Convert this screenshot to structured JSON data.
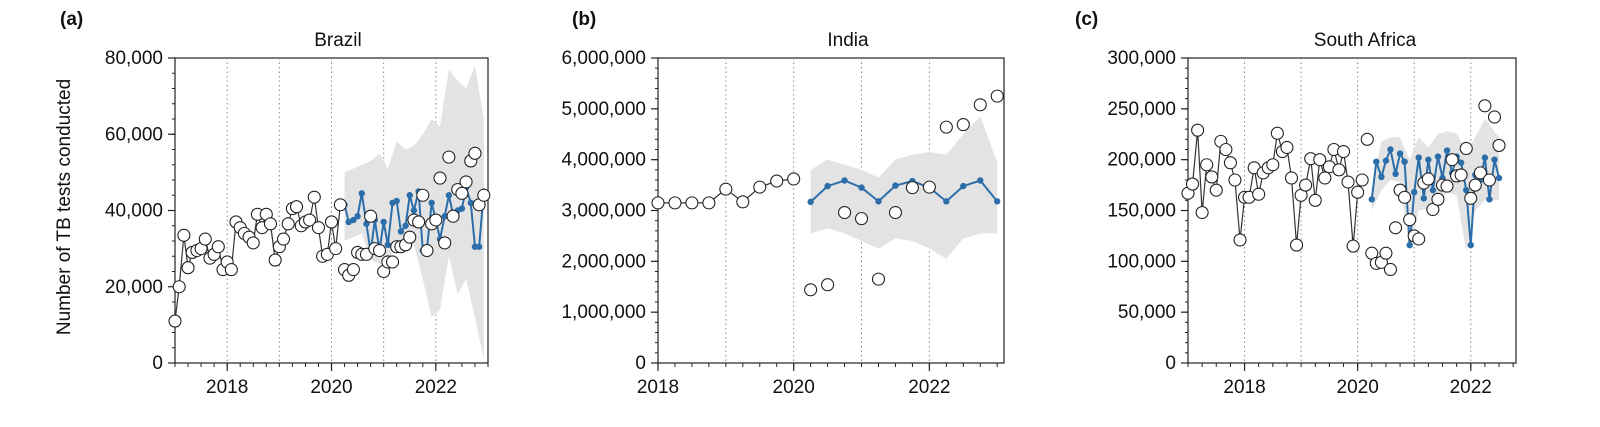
{
  "figure": {
    "ylabel": "Number of TB tests conducted"
  },
  "chart_data": [
    {
      "type": "line",
      "letter": "(a)",
      "title": "Brazil",
      "ylim": [
        0,
        80000
      ],
      "xlim": [
        2017.0,
        2023.0
      ],
      "y_ticks": [
        0,
        20000,
        40000,
        60000,
        80000
      ],
      "y_tick_labels": [
        "0",
        "20,000",
        "40,000",
        "60,000",
        "80,000"
      ],
      "x_ticks": [
        2018,
        2020,
        2022
      ],
      "x_tick_labels": [
        "2018",
        "2020",
        "2022"
      ],
      "year_gridlines": [
        2018,
        2019,
        2020,
        2021,
        2022
      ],
      "series": [
        {
          "role": "observed",
          "x": [
            2017.0,
            2017.08,
            2017.17,
            2017.25,
            2017.33,
            2017.42,
            2017.5,
            2017.58,
            2017.67,
            2017.75,
            2017.83,
            2017.92,
            2018.0,
            2018.08,
            2018.17,
            2018.25,
            2018.33,
            2018.42,
            2018.5,
            2018.58,
            2018.67,
            2018.75,
            2018.83,
            2018.92,
            2019.0,
            2019.08,
            2019.17,
            2019.25,
            2019.33,
            2019.42,
            2019.5,
            2019.58,
            2019.67,
            2019.75,
            2019.83,
            2019.92,
            2020.0,
            2020.08,
            2020.17,
            2020.25,
            2020.33,
            2020.42,
            2020.5,
            2020.58,
            2020.67,
            2020.75,
            2020.83,
            2020.92,
            2021.0,
            2021.08,
            2021.17,
            2021.25,
            2021.33,
            2021.42,
            2021.5,
            2021.58,
            2021.67,
            2021.75,
            2021.83,
            2021.92,
            2022.0,
            2022.08,
            2022.17,
            2022.25,
            2022.33,
            2022.42,
            2022.5,
            2022.58,
            2022.67,
            2022.75,
            2022.83,
            2022.92
          ],
          "y": [
            11000,
            20000,
            33500,
            25000,
            29000,
            29500,
            30000,
            32500,
            27500,
            28500,
            30500,
            24500,
            26500,
            24500,
            37000,
            35500,
            34000,
            33000,
            31500,
            39000,
            35500,
            39000,
            36500,
            27000,
            30500,
            32500,
            36500,
            40500,
            41000,
            36000,
            37000,
            37500,
            43500,
            35500,
            28000,
            28500,
            37000,
            30000,
            41500,
            24500,
            23000,
            24500,
            29000,
            28500,
            28500,
            38500,
            30000,
            29500,
            24000,
            26500,
            26500,
            30500,
            30500,
            31000,
            33000,
            37500,
            37000,
            44000,
            29500,
            36500,
            37500,
            48500,
            31500,
            54000,
            38500,
            45500,
            44500,
            47500,
            53000,
            55000,
            41500,
            44000
          ],
          "line_order": [
            0,
            1,
            2,
            3,
            4,
            5,
            6,
            7,
            8,
            9,
            10,
            11,
            12,
            13,
            14,
            15,
            16,
            17,
            18,
            19,
            20,
            21,
            22,
            23,
            24,
            25,
            26,
            27,
            28,
            29,
            30,
            31,
            32,
            33,
            34,
            35,
            36,
            37,
            38
          ],
          "marker": "open-circle"
        },
        {
          "role": "predicted",
          "x": [
            2020.25,
            2020.33,
            2020.42,
            2020.5,
            2020.58,
            2020.67,
            2020.75,
            2020.83,
            2020.92,
            2021.0,
            2021.08,
            2021.17,
            2021.25,
            2021.33,
            2021.42,
            2021.5,
            2021.58,
            2021.67,
            2021.75,
            2021.83,
            2021.92,
            2022.0,
            2022.08,
            2022.17,
            2022.25,
            2022.33,
            2022.42,
            2022.5,
            2022.58,
            2022.67,
            2022.75,
            2022.83,
            2022.92
          ],
          "y": [
            41500,
            37000,
            37500,
            38500,
            44500,
            36500,
            29000,
            37500,
            29500,
            37000,
            31000,
            42000,
            42500,
            34500,
            36000,
            44000,
            40000,
            45000,
            29500,
            30000,
            42000,
            37500,
            32500,
            38500,
            44000,
            39000,
            40000,
            40500,
            46000,
            42000,
            30500,
            30500,
            45000
          ],
          "color": "#2c6eaa"
        },
        {
          "role": "prediction-interval",
          "x": [
            2020.25,
            2020.42,
            2020.58,
            2020.75,
            2020.92,
            2021.08,
            2021.25,
            2021.42,
            2021.58,
            2021.75,
            2021.92,
            2022.08,
            2022.25,
            2022.42,
            2022.58,
            2022.75,
            2022.92
          ],
          "lower": [
            32000,
            33000,
            34000,
            27000,
            26000,
            27000,
            30000,
            29000,
            31000,
            22000,
            12000,
            14000,
            28000,
            18000,
            22000,
            12000,
            1000
          ],
          "upper": [
            50000,
            51000,
            52000,
            53000,
            55000,
            51000,
            58000,
            56000,
            57000,
            60000,
            64000,
            62000,
            77000,
            74000,
            72000,
            78000,
            64000
          ],
          "color": "#e3e3e3"
        }
      ]
    },
    {
      "type": "line",
      "letter": "(b)",
      "title": "India",
      "ylim": [
        0,
        6000000
      ],
      "xlim": [
        2018.0,
        2023.1
      ],
      "y_ticks": [
        0,
        1000000,
        2000000,
        3000000,
        4000000,
        5000000,
        6000000
      ],
      "y_tick_labels": [
        "0",
        "1,000,000",
        "2,000,000",
        "3,000,000",
        "4,000,000",
        "5,000,000",
        "6,000,000"
      ],
      "x_ticks": [
        2018,
        2020,
        2022
      ],
      "x_tick_labels": [
        "2018",
        "2020",
        "2022"
      ],
      "year_gridlines": [
        2019,
        2020,
        2021,
        2022
      ],
      "series": [
        {
          "role": "observed",
          "x": [
            2018.0,
            2018.25,
            2018.5,
            2018.75,
            2019.0,
            2019.25,
            2019.5,
            2019.75,
            2020.0,
            2020.25,
            2020.5,
            2020.75,
            2021.0,
            2021.25,
            2021.5,
            2021.75,
            2022.0,
            2022.25,
            2022.5,
            2022.75,
            2023.0
          ],
          "y": [
            3150000,
            3150000,
            3150000,
            3150000,
            3420000,
            3170000,
            3460000,
            3580000,
            3620000,
            1440000,
            1540000,
            2960000,
            2840000,
            1650000,
            2960000,
            3450000,
            3460000,
            4640000,
            4690000,
            5080000,
            5250000
          ],
          "line_order": [
            0,
            1,
            2,
            3,
            4,
            5,
            6,
            7,
            8
          ],
          "marker": "open-circle"
        },
        {
          "role": "predicted",
          "x": [
            2020.25,
            2020.5,
            2020.75,
            2021.0,
            2021.25,
            2021.5,
            2021.75,
            2022.0,
            2022.25,
            2022.5,
            2022.75,
            2023.0
          ],
          "y": [
            3170000,
            3480000,
            3590000,
            3450000,
            3180000,
            3490000,
            3580000,
            3450000,
            3180000,
            3480000,
            3590000,
            3180000
          ],
          "color": "#2c6eaa"
        },
        {
          "role": "prediction-interval",
          "x": [
            2020.25,
            2020.5,
            2020.75,
            2021.0,
            2021.25,
            2021.5,
            2021.75,
            2022.0,
            2022.25,
            2022.5,
            2022.75,
            2023.0
          ],
          "lower": [
            2550000,
            2650000,
            2550000,
            2400000,
            2250000,
            2450000,
            2400000,
            2250000,
            2050000,
            2450000,
            2550000,
            2550000
          ],
          "upper": [
            3800000,
            4000000,
            3900000,
            3800000,
            3650000,
            4000000,
            4100000,
            4150000,
            4100000,
            4500000,
            4850000,
            3950000
          ],
          "color": "#e3e3e3"
        }
      ]
    },
    {
      "type": "line",
      "letter": "(c)",
      "title": "South Africa",
      "ylim": [
        0,
        300000
      ],
      "xlim": [
        2017.0,
        2022.8
      ],
      "y_ticks": [
        0,
        50000,
        100000,
        150000,
        200000,
        250000,
        300000
      ],
      "y_tick_labels": [
        "0",
        "50,000",
        "100,000",
        "150,000",
        "200,000",
        "250,000",
        "300,000"
      ],
      "x_ticks": [
        2018,
        2020,
        2022
      ],
      "x_tick_labels": [
        "2018",
        "2020",
        "2022"
      ],
      "year_gridlines": [
        2018,
        2019,
        2020,
        2021,
        2022
      ],
      "series": [
        {
          "role": "observed",
          "x": [
            2017.0,
            2017.08,
            2017.17,
            2017.25,
            2017.33,
            2017.42,
            2017.5,
            2017.58,
            2017.67,
            2017.75,
            2017.83,
            2017.92,
            2018.0,
            2018.08,
            2018.17,
            2018.25,
            2018.33,
            2018.42,
            2018.5,
            2018.58,
            2018.67,
            2018.75,
            2018.83,
            2018.92,
            2019.0,
            2019.08,
            2019.17,
            2019.25,
            2019.33,
            2019.42,
            2019.5,
            2019.58,
            2019.67,
            2019.75,
            2019.83,
            2019.92,
            2020.0,
            2020.08,
            2020.17,
            2020.25,
            2020.33,
            2020.42,
            2020.5,
            2020.58,
            2020.67,
            2020.75,
            2020.83,
            2020.92,
            2021.0,
            2021.08,
            2021.17,
            2021.25,
            2021.33,
            2021.42,
            2021.5,
            2021.58,
            2021.67,
            2021.75,
            2021.83,
            2021.92,
            2022.0,
            2022.08,
            2022.17,
            2022.25,
            2022.33,
            2022.42,
            2022.5
          ],
          "y": [
            167000,
            176000,
            229000,
            148000,
            195000,
            183000,
            170000,
            218000,
            210000,
            197000,
            180000,
            121000,
            163000,
            163000,
            192000,
            166000,
            187000,
            192000,
            195000,
            226000,
            208000,
            212000,
            182000,
            116000,
            165000,
            175000,
            201000,
            160000,
            200000,
            182000,
            193000,
            210000,
            190000,
            208000,
            178000,
            115000,
            168000,
            180000,
            220000,
            108000,
            98000,
            99000,
            108000,
            92000,
            133000,
            170000,
            163000,
            141000,
            125000,
            122000,
            177000,
            181000,
            151000,
            161000,
            175000,
            174000,
            200000,
            184000,
            185000,
            211000,
            162000,
            175000,
            187000,
            253000,
            180000,
            242000,
            214000
          ],
          "line_order": [
            0,
            1,
            2,
            3,
            4,
            5,
            6,
            7,
            8,
            9,
            10,
            11,
            12,
            13,
            14,
            15,
            16,
            17,
            18,
            19,
            20,
            21,
            22,
            23,
            24,
            25,
            26,
            27,
            28,
            29,
            30,
            31,
            32,
            33,
            34,
            35,
            36,
            37
          ],
          "marker": "open-circle"
        },
        {
          "role": "predicted",
          "x": [
            2020.25,
            2020.33,
            2020.42,
            2020.5,
            2020.58,
            2020.67,
            2020.75,
            2020.83,
            2020.92,
            2021.0,
            2021.08,
            2021.17,
            2021.25,
            2021.33,
            2021.42,
            2021.5,
            2021.58,
            2021.67,
            2021.75,
            2021.83,
            2021.92,
            2022.0,
            2022.08,
            2022.17,
            2022.25,
            2022.33,
            2022.42,
            2022.5
          ],
          "y": [
            161000,
            198000,
            183000,
            199000,
            210000,
            186000,
            206000,
            198000,
            116000,
            168000,
            202000,
            162000,
            200000,
            170000,
            203000,
            182000,
            209000,
            187000,
            203000,
            197000,
            170000,
            116000,
            185000,
            180000,
            202000,
            161000,
            200000,
            182000
          ],
          "color": "#2c6eaa"
        },
        {
          "role": "prediction-interval",
          "x": [
            2020.25,
            2020.42,
            2020.58,
            2020.75,
            2020.92,
            2021.08,
            2021.25,
            2021.42,
            2021.58,
            2021.75,
            2021.92,
            2022.08,
            2022.25,
            2022.5
          ],
          "lower": [
            150000,
            170000,
            180000,
            178000,
            110000,
            150000,
            152000,
            155000,
            168000,
            165000,
            110000,
            150000,
            160000,
            160000
          ],
          "upper": [
            172000,
            218000,
            222000,
            222000,
            200000,
            222000,
            212000,
            225000,
            228000,
            226000,
            208000,
            222000,
            240000,
            222000
          ],
          "color": "#e3e3e3"
        }
      ]
    }
  ]
}
